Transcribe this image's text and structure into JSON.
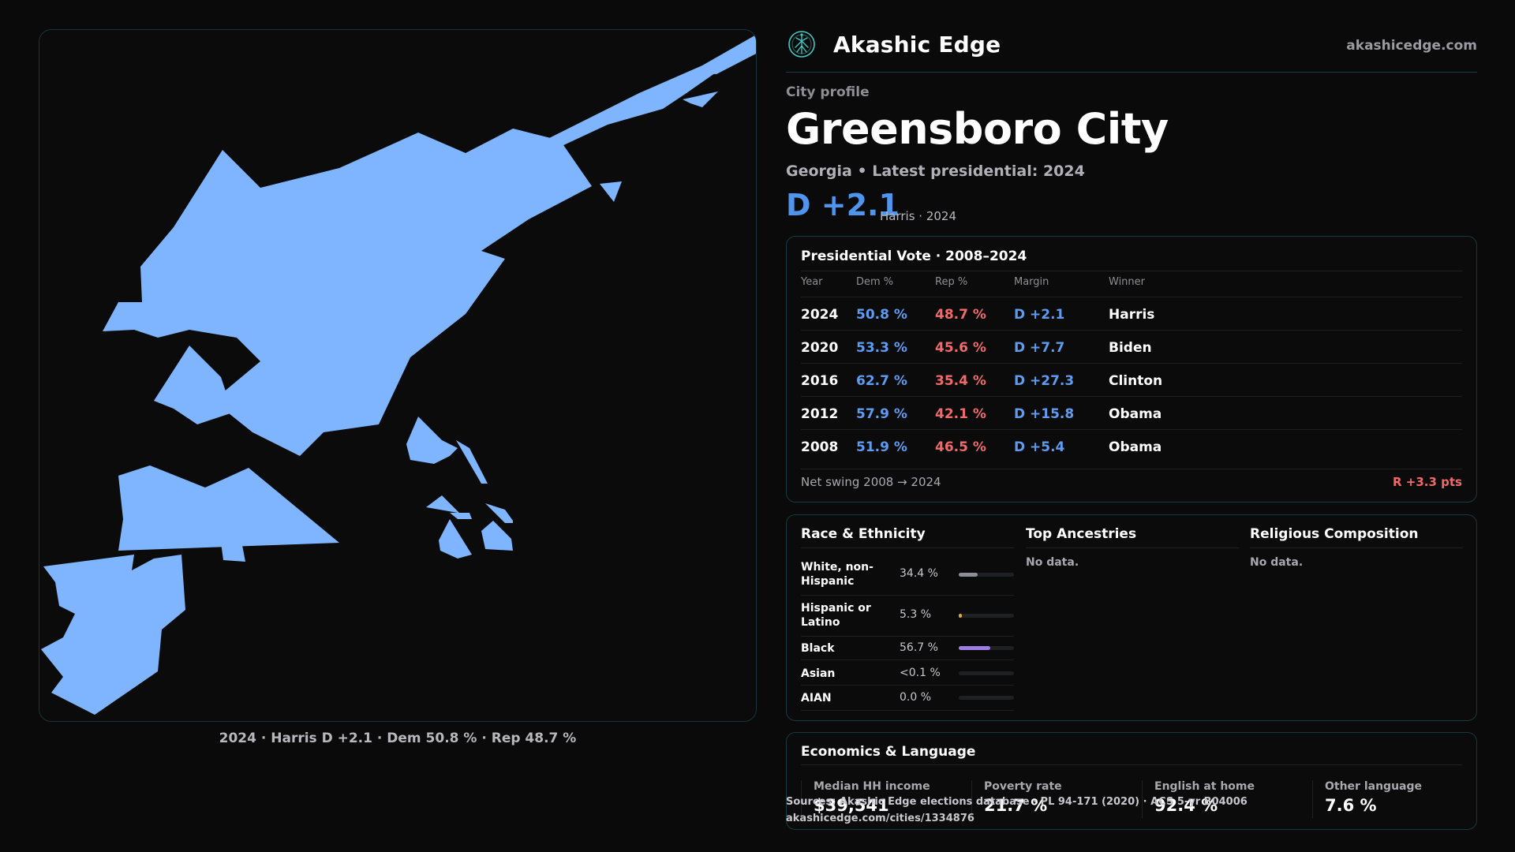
{
  "brand": {
    "name": "Akashic Edge",
    "url": "akashicedge.com",
    "logo_icon": "tree-of-life-icon",
    "accent": "#3fc9c4"
  },
  "map": {
    "caption": "2024 · Harris D +2.1 · Dem 50.8 % · Rep 48.7 %",
    "fill_color": "#7fb5ff"
  },
  "city": {
    "eyebrow": "City profile",
    "title": "Greensboro City",
    "subline": "Georgia • Latest presidential: 2024",
    "margin": "D +2.1",
    "margin_note": "Harris · 2024"
  },
  "vote_table": {
    "title": "Presidential Vote · 2008–2024",
    "columns": [
      "Year",
      "Dem %",
      "Rep %",
      "Margin",
      "Winner"
    ],
    "rows": [
      {
        "year": "2024",
        "dem": "50.8 %",
        "rep": "48.7 %",
        "margin": "D +2.1",
        "winner": "Harris"
      },
      {
        "year": "2020",
        "dem": "53.3 %",
        "rep": "45.6 %",
        "margin": "D +7.7",
        "winner": "Biden"
      },
      {
        "year": "2016",
        "dem": "62.7 %",
        "rep": "35.4 %",
        "margin": "D +27.3",
        "winner": "Clinton"
      },
      {
        "year": "2012",
        "dem": "57.9 %",
        "rep": "42.1 %",
        "margin": "D +15.8",
        "winner": "Obama"
      },
      {
        "year": "2008",
        "dem": "51.9 %",
        "rep": "46.5 %",
        "margin": "D +5.4",
        "winner": "Obama"
      }
    ],
    "swing_label": "Net swing 2008 → 2024",
    "swing_value": "R +3.3 pts",
    "dem_color": "#5d9cf0",
    "rep_color": "#f06a6a"
  },
  "race": {
    "title": "Race & Ethnicity",
    "rows": [
      {
        "label": "White, non-Hispanic",
        "pct": "34.4 %",
        "share": 0.344,
        "color": "#8e8e98"
      },
      {
        "label": "Hispanic or Latino",
        "pct": "5.3 %",
        "share": 0.053,
        "color": "#e6a23c"
      },
      {
        "label": "Black",
        "pct": "56.7 %",
        "share": 0.567,
        "color": "#9b7de3"
      },
      {
        "label": "Asian",
        "pct": "<0.1 %",
        "share": 0.0,
        "color": "#5fb3a8"
      },
      {
        "label": "AIAN",
        "pct": "0.0 %",
        "share": 0.0,
        "color": "#5fb3a8"
      }
    ]
  },
  "ancestries": {
    "title": "Top Ancestries",
    "empty": "No data."
  },
  "religion": {
    "title": "Religious Composition",
    "empty": "No data."
  },
  "economics": {
    "title": "Economics & Language",
    "cells": [
      {
        "label": "Median HH income",
        "value": "$39,541"
      },
      {
        "label": "Poverty rate",
        "value": "21.7 %"
      },
      {
        "label": "English at home",
        "value": "92.4 %"
      },
      {
        "label": "Other language",
        "value": "7.6 %"
      }
    ]
  },
  "source": {
    "line1": "Sources: Akashic Edge elections database · PL 94-171 (2020) · ACS 5-yr B04006",
    "line2": "akashicedge.com/cities/1334876"
  }
}
